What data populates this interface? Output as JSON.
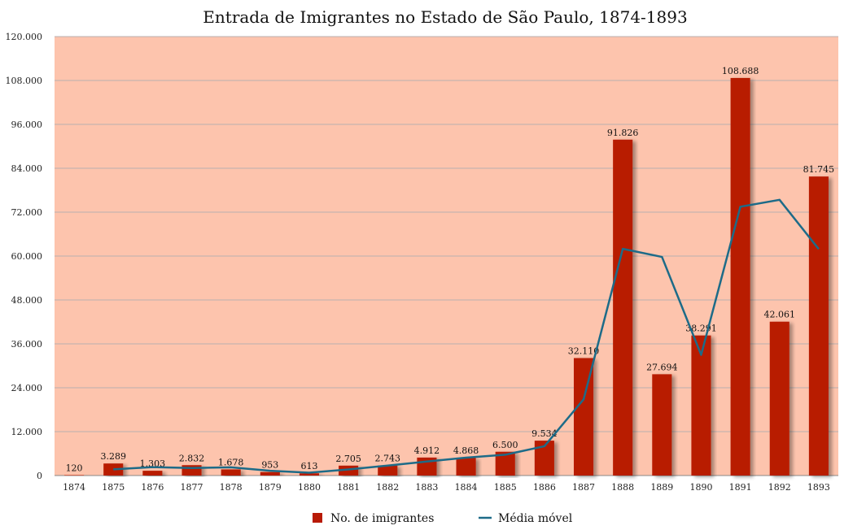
{
  "chart_data": {
    "type": "bar",
    "title": "Entrada de Imigrantes no Estado de São Paulo, 1874-1893",
    "xlabel": "",
    "ylabel": "",
    "categories": [
      "1874",
      "1875",
      "1876",
      "1877",
      "1878",
      "1879",
      "1880",
      "1881",
      "1882",
      "1883",
      "1884",
      "1885",
      "1886",
      "1887",
      "1888",
      "1889",
      "1890",
      "1891",
      "1892",
      "1893"
    ],
    "series": [
      {
        "name": "No. de imigrantes",
        "type": "bar",
        "color": "#b81a05",
        "values": [
          120,
          3289,
          1303,
          2832,
          1678,
          953,
          613,
          2705,
          2743,
          4912,
          4868,
          6500,
          9534,
          32110,
          91826,
          27694,
          38291,
          108688,
          42061,
          81745
        ],
        "data_labels": [
          "120",
          "3.289",
          "1.303",
          "2.832",
          "1.678",
          "953",
          "613",
          "2.705",
          "2.743",
          "4.912",
          "4.868",
          "6.500",
          "9.534",
          "32.110",
          "91.826",
          "27.694",
          "38.291",
          "108.688",
          "42.061",
          "81.745"
        ]
      },
      {
        "name": "Média móvel",
        "type": "line",
        "color": "#1d6b88",
        "values": [
          null,
          1705,
          2296,
          2068,
          2255,
          1316,
          783,
          1659,
          2724,
          3828,
          4890,
          5684,
          8017,
          20822,
          61968,
          59760,
          32993,
          73490,
          75375,
          61903
        ]
      }
    ],
    "ylim": [
      0,
      120000
    ],
    "yticks": [
      0,
      12000,
      24000,
      36000,
      48000,
      60000,
      72000,
      84000,
      96000,
      108000,
      120000
    ],
    "ytick_labels": [
      "0",
      "12.000",
      "24.000",
      "36.000",
      "48.000",
      "60.000",
      "72.000",
      "84.000",
      "96.000",
      "108.000",
      "120.000"
    ],
    "grid": true,
    "legend_position": "bottom",
    "colors": {
      "plot_background": "#fdc4ad",
      "grid": "#b9b1b0"
    }
  }
}
